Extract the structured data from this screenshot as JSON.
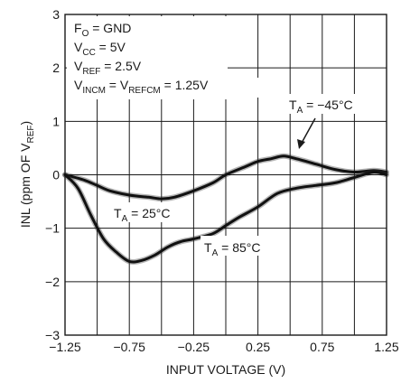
{
  "chart_data": {
    "type": "line",
    "xlabel": "INPUT VOLTAGE (V)",
    "ylabel": {
      "main": "INL (ppm OF V",
      "sub": "REF",
      "tail": ")"
    },
    "xlim": [
      -1.25,
      1.25
    ],
    "ylim": [
      -3,
      3
    ],
    "x_ticks": [
      "−1.25",
      "−0.75",
      "−0.25",
      "0.25",
      "0.75",
      "1.25"
    ],
    "y_ticks": [
      "3",
      "2",
      "1",
      "0",
      "−1",
      "−2",
      "−3"
    ],
    "grid": true,
    "conditions": [
      {
        "main": "F",
        "sub": "O",
        "tail": " = GND"
      },
      {
        "main": "V",
        "sub": "CC",
        "tail": " = 5V"
      },
      {
        "main": "V",
        "sub": "REF",
        "tail": " = 2.5V"
      },
      {
        "main": "V",
        "sub": "INCM",
        "mid": " = V",
        "sub2": "REFCM",
        "tail": " = 1.25V"
      }
    ],
    "series": [
      {
        "label": {
          "main": "T",
          "sub": "A",
          "tail": " = −45°C"
        },
        "x": [
          -1.25,
          -1.1,
          -1.0,
          -0.9,
          -0.75,
          -0.6,
          -0.5,
          -0.4,
          -0.25,
          -0.1,
          0.0,
          0.15,
          0.25,
          0.35,
          0.45,
          0.55,
          0.7,
          0.85,
          1.0,
          1.15,
          1.25
        ],
        "y": [
          0.0,
          -0.1,
          -0.2,
          -0.3,
          -0.38,
          -0.42,
          -0.45,
          -0.42,
          -0.3,
          -0.15,
          0.0,
          0.15,
          0.25,
          0.3,
          0.35,
          0.3,
          0.2,
          0.1,
          0.05,
          0.08,
          0.05
        ]
      },
      {
        "label": {
          "main": "T",
          "sub": "A",
          "tail": " = 25°C"
        },
        "x": [
          -1.25,
          -1.15,
          -1.05,
          -0.95,
          -0.85,
          -0.75,
          -0.65,
          -0.55,
          -0.45,
          -0.35,
          -0.25,
          -0.1,
          0.0,
          0.1,
          0.25,
          0.4,
          0.55,
          0.7,
          0.85,
          1.0,
          1.15,
          1.25
        ],
        "y": [
          0.0,
          -0.25,
          -0.75,
          -1.2,
          -1.45,
          -1.62,
          -1.6,
          -1.5,
          -1.35,
          -1.25,
          -1.2,
          -1.1,
          -0.95,
          -0.8,
          -0.6,
          -0.35,
          -0.25,
          -0.2,
          -0.15,
          -0.05,
          0.05,
          0.0
        ]
      }
    ],
    "annotations": [
      {
        "main": "T",
        "sub": "A",
        "tail": " = 25°C"
      },
      {
        "main": "T",
        "sub": "A",
        "tail": " = 85°C"
      },
      {
        "main": "T",
        "sub": "A",
        "tail": " = −45°C"
      }
    ]
  }
}
